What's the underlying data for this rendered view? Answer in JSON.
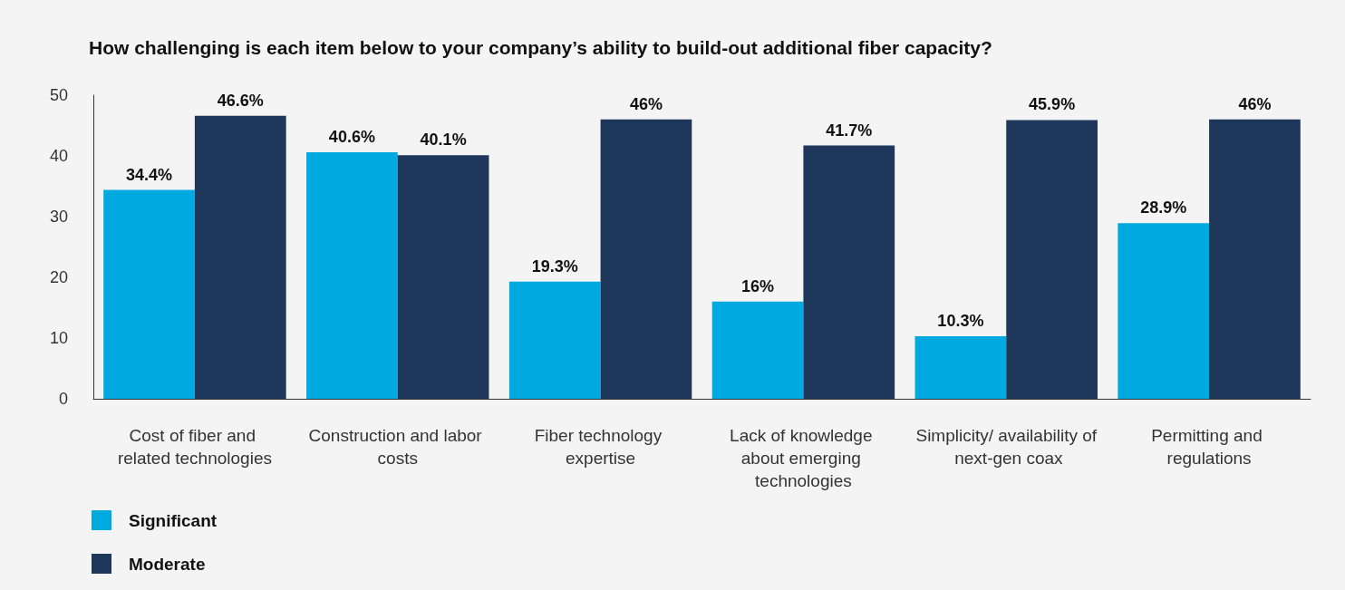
{
  "chart_data": {
    "type": "bar",
    "title": "How challenging is each item below to your company’s ability to build-out additional fiber capacity?",
    "categories": [
      "Cost of fiber and related technologies",
      "Construction and labor costs",
      "Fiber technology expertise",
      "Lack of knowledge about emerging technologies",
      "Simplicity/ availability of next-gen coax",
      "Permitting and regulations"
    ],
    "series": [
      {
        "name": "Significant",
        "color": "#00a9e0",
        "values": [
          34.4,
          40.6,
          19.3,
          16,
          10.3,
          28.9
        ],
        "value_labels": [
          "34.4%",
          "40.6%",
          "19.3%",
          "16%",
          "10.3%",
          "28.9%"
        ]
      },
      {
        "name": "Moderate",
        "color": "#1f375b",
        "values": [
          46.6,
          40.1,
          46,
          41.7,
          45.9,
          46
        ],
        "value_labels": [
          "46.6%",
          "40.1%",
          "46%",
          "41.7%",
          "45.9%",
          "46%"
        ]
      }
    ],
    "ylim": [
      0,
      50
    ],
    "yticks": [
      0,
      10,
      20,
      30,
      40,
      50
    ],
    "grid": false,
    "legend": "bottom left"
  }
}
